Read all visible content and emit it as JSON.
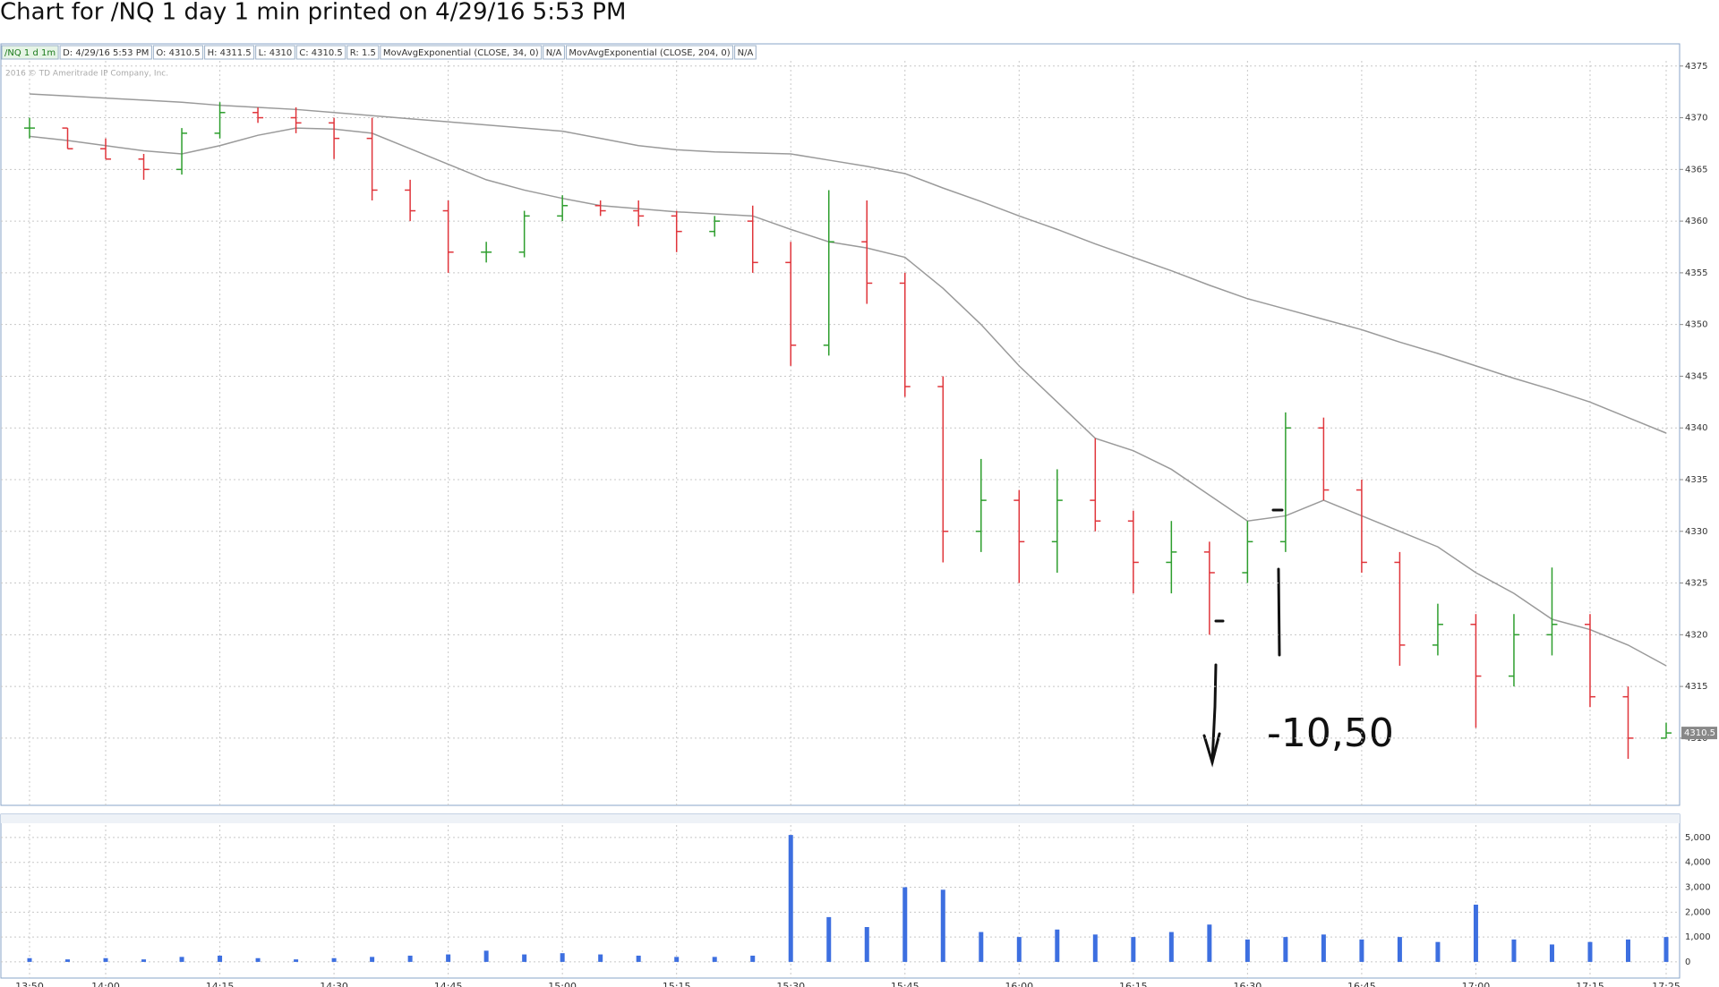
{
  "chart_data": {
    "type": "ohlc",
    "title": "Chart for /NQ 1 day 1 min printed on 4/29/16 5:53 PM",
    "info": [
      "/NQ 1 d 1m",
      "D: 4/29/16 5:53 PM",
      "O: 4310.5",
      "H: 4311.5",
      "L: 4310",
      "C: 4310.5",
      "R: 1.5"
    ],
    "watermark": "2016 © TD Ameritrade IP Company, Inc.",
    "annotation": "-10,50",
    "categories": [
      "13:50",
      null,
      "14:00",
      null,
      null,
      "14:15",
      null,
      null,
      "14:30",
      null,
      null,
      "14:45",
      null,
      null,
      "15:00",
      null,
      null,
      "15:15",
      null,
      null,
      "15:30",
      null,
      null,
      "15:45",
      null,
      null,
      "16:00",
      null,
      null,
      "16:15",
      null,
      null,
      "16:30",
      null,
      null,
      "16:45",
      null,
      null,
      "17:00",
      null,
      null,
      "17:15",
      null,
      "17:25"
    ],
    "open": [
      4369,
      4369,
      4367,
      4366,
      4365,
      4368.5,
      4370.5,
      4370,
      4369.5,
      4368,
      4363,
      4361,
      4357,
      4357,
      4360.5,
      4361.5,
      4361,
      4360.5,
      4359,
      4360,
      4356,
      4348,
      4358,
      4354,
      4344,
      4330,
      4333,
      4329,
      4333,
      4331,
      4327,
      4328,
      4326,
      4329,
      4340,
      4334,
      4327,
      4319,
      4321,
      4316,
      4320,
      4321,
      4314,
      4310
    ],
    "high": [
      4370,
      4369,
      4368,
      4366.5,
      4369,
      4371.5,
      4371,
      4371,
      4370,
      4370,
      4364,
      4362,
      4358,
      4361,
      4362.5,
      4362,
      4362,
      4361,
      4360.5,
      4361.5,
      4358,
      4363,
      4362,
      4355,
      4345,
      4337,
      4334,
      4336,
      4339,
      4332,
      4331,
      4329,
      4331,
      4341.5,
      4341,
      4335,
      4328,
      4323,
      4322,
      4322,
      4326.5,
      4322,
      4315,
      4311.5
    ],
    "low": [
      4368,
      4367,
      4366,
      4364,
      4364.5,
      4368,
      4369.5,
      4368.5,
      4366,
      4362,
      4360,
      4355,
      4356,
      4356.5,
      4360,
      4360.5,
      4359.5,
      4357,
      4358.5,
      4355,
      4346,
      4347,
      4352,
      4343,
      4327,
      4328,
      4325,
      4326,
      4330,
      4324,
      4324,
      4320,
      4325,
      4328,
      4333,
      4326,
      4317,
      4318,
      4311,
      4315,
      4318,
      4313,
      4308,
      4310
    ],
    "close": [
      4369,
      4367,
      4366,
      4365,
      4368.5,
      4370.5,
      4370,
      4369.5,
      4368,
      4363,
      4361,
      4357,
      4357,
      4360.5,
      4361.5,
      4361,
      4360.5,
      4359,
      4360,
      4356,
      4348,
      4358,
      4354,
      4344,
      4330,
      4333,
      4329,
      4333,
      4331,
      4327,
      4328,
      4326,
      4329,
      4340,
      4334,
      4327,
      4319,
      4321,
      4316,
      4320,
      4321,
      4314,
      4310,
      4310.5
    ],
    "up_color": "#2e9e2e",
    "down_color": "#e0353b",
    "ylim": [
      4303.5,
      4375.5
    ],
    "yticks": [
      4310,
      4315,
      4320,
      4325,
      4330,
      4335,
      4340,
      4345,
      4350,
      4355,
      4360,
      4365,
      4370,
      4375
    ],
    "grid": true,
    "overlays": [
      {
        "name": "MovAvgExponential (CLOSE, 34, 0)",
        "status": "N/A",
        "color": "#9a9a9a",
        "values": [
          4368.2,
          4367.8,
          4367.3,
          4366.8,
          4366.5,
          4367.3,
          4368.3,
          4369,
          4368.9,
          4368.5,
          4367,
          4365.5,
          4364,
          4363,
          4362.2,
          4361.5,
          4361.2,
          4360.9,
          4360.7,
          4360.5,
          4359.2,
          4358,
          4357.4,
          4356.5,
          4353.5,
          4350,
          4346,
          4342.5,
          4339,
          4337.8,
          4336,
          4333.5,
          4331,
          4331.5,
          4333,
          4331.5,
          4330,
          4328.5,
          4326,
          4324,
          4321.5,
          4320.5,
          4319,
          4317
        ]
      },
      {
        "name": "MovAvgExponential (CLOSE, 204, 0)",
        "status": "N/A",
        "color": "#9a9a9a",
        "values": [
          4372.3,
          4372.1,
          4371.9,
          4371.7,
          4371.5,
          4371.2,
          4371,
          4370.8,
          4370.5,
          4370.2,
          4369.9,
          4369.6,
          4369.3,
          4369,
          4368.7,
          4368,
          4367.3,
          4366.9,
          4366.7,
          4366.6,
          4366.5,
          4365.9,
          4365.3,
          4364.6,
          4363.2,
          4361.9,
          4360.5,
          4359.2,
          4357.8,
          4356.5,
          4355.2,
          4353.8,
          4352.5,
          4351.5,
          4350.5,
          4349.5,
          4348.3,
          4347.2,
          4346,
          4344.8,
          4343.7,
          4342.5,
          4341,
          4339.5
        ]
      }
    ],
    "volume": {
      "color": "#3d6fe0",
      "values": [
        150,
        100,
        150,
        100,
        200,
        250,
        150,
        100,
        150,
        200,
        250,
        300,
        450,
        300,
        350,
        300,
        250,
        200,
        200,
        250,
        5100,
        1800,
        1400,
        3000,
        2900,
        1200,
        1000,
        1300,
        1100,
        1000,
        1200,
        1500,
        900,
        1000,
        1100,
        900,
        1000,
        800,
        2300,
        900,
        700,
        800,
        900,
        1000
      ],
      "ylim": [
        -650,
        5500
      ],
      "yticks": [
        0,
        {
          "value": 1000,
          "label": "1,000"
        },
        {
          "value": 2000,
          "label": "2,000"
        },
        {
          "value": 3000,
          "label": "3,000"
        },
        {
          "value": 4000,
          "label": "4,000"
        },
        {
          "value": 5000,
          "label": "5,000"
        }
      ]
    }
  }
}
